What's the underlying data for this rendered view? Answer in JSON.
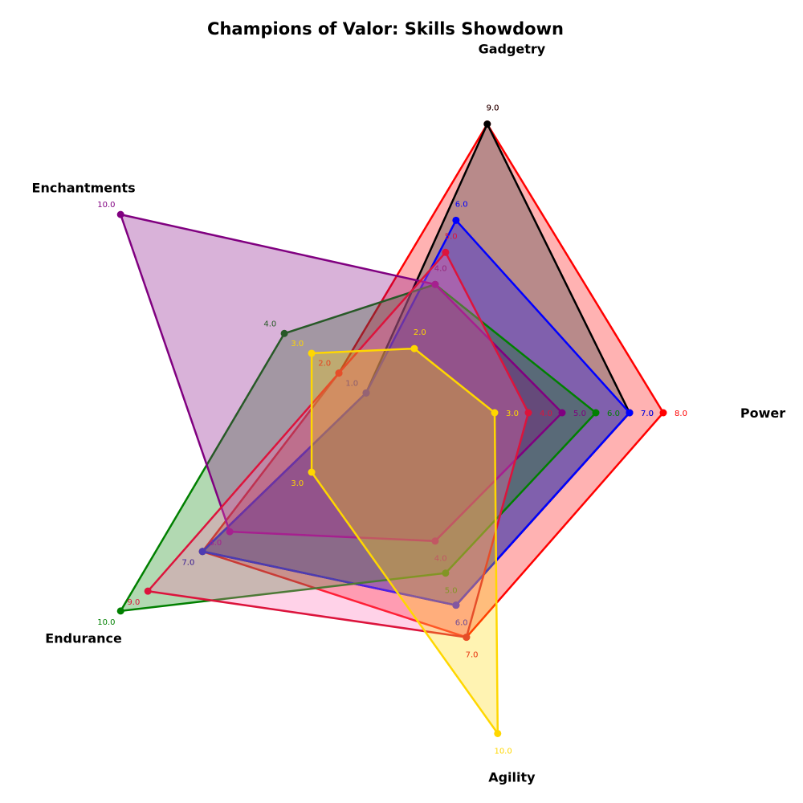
{
  "chart_data": {
    "type": "radar",
    "title": "Champions of Valor: Skills Showdown",
    "axes": [
      "Power",
      "Gadgetry",
      "Enchantments",
      "Endurance",
      "Agility"
    ],
    "rmax": 10,
    "grid": false,
    "series": [
      {
        "color": "#ff0000",
        "fill": "#ff0000",
        "fill_opacity": 0.3,
        "values": [
          8,
          9,
          2,
          7,
          7
        ]
      },
      {
        "color": "#000000",
        "fill": "#4d4d4d",
        "fill_opacity": 0.4,
        "values": [
          7,
          9,
          1,
          7,
          6
        ]
      },
      {
        "color": "#0000ff",
        "fill": "#0000ff",
        "fill_opacity": 0.3,
        "values": [
          7,
          6,
          1,
          7,
          6
        ]
      },
      {
        "color": "#008000",
        "fill": "#008000",
        "fill_opacity": 0.3,
        "values": [
          6,
          4,
          4,
          10,
          5
        ]
      },
      {
        "color": "#800080",
        "fill": "#800080",
        "fill_opacity": 0.3,
        "values": [
          5,
          4,
          10,
          6,
          4
        ]
      },
      {
        "color": "#dc143c",
        "fill": "#ff69b4",
        "fill_opacity": 0.3,
        "values": [
          4,
          5,
          2,
          9,
          7
        ]
      },
      {
        "color": "#ffd700",
        "fill": "#ffd700",
        "fill_opacity": 0.3,
        "values": [
          3,
          2,
          3,
          3,
          10
        ]
      }
    ]
  }
}
